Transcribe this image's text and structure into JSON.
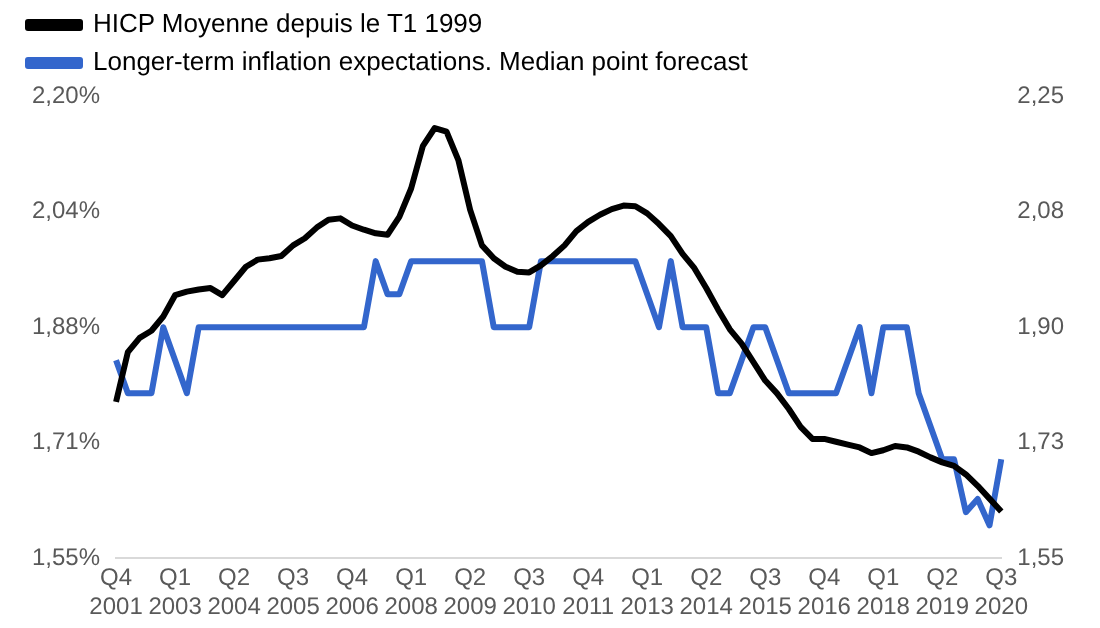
{
  "chart_data": {
    "type": "line",
    "legend": "top",
    "grid": false,
    "marker": "none",
    "line_style": "solid",
    "categories": [
      "Q4 2001",
      null,
      null,
      null,
      null,
      "Q1 2003",
      null,
      null,
      null,
      null,
      "Q2 2004",
      null,
      null,
      null,
      null,
      "Q3 2005",
      null,
      null,
      null,
      null,
      "Q4 2006",
      null,
      null,
      null,
      null,
      "Q1 2008",
      null,
      null,
      null,
      null,
      "Q2 2009",
      null,
      null,
      null,
      null,
      "Q3 2010",
      null,
      null,
      null,
      null,
      "Q4 2011",
      null,
      null,
      null,
      null,
      "Q1 2013",
      null,
      null,
      null,
      null,
      "Q2 2014",
      null,
      null,
      null,
      null,
      "Q3 2015",
      null,
      null,
      null,
      null,
      "Q4 2016",
      null,
      null,
      null,
      null,
      "Q1 2018",
      null,
      null,
      null,
      null,
      "Q2 2019",
      null,
      null,
      null,
      null,
      "Q3 2020"
    ],
    "ylim": [
      1.55,
      2.2
    ],
    "yticks": [
      {
        "value": 1.55,
        "label": "1,55%"
      },
      {
        "value": 1.7125,
        "label": "1,71%"
      },
      {
        "value": 1.875,
        "label": "1,88%"
      },
      {
        "value": 2.0375,
        "label": "2,04%"
      },
      {
        "value": 2.2,
        "label": "2,20%"
      }
    ],
    "y2lim": [
      1.55,
      2.25
    ],
    "y2ticks": [
      {
        "value": 1.55,
        "label": "1,55"
      },
      {
        "value": 1.725,
        "label": "1,73"
      },
      {
        "value": 1.9,
        "label": "1,90"
      },
      {
        "value": 2.075,
        "label": "2,08"
      },
      {
        "value": 2.25,
        "label": "2,25"
      }
    ],
    "series": [
      {
        "name": "HICP Moyenne depuis le T1 1999",
        "color": "#000000",
        "values": [
          1.77,
          1.84,
          1.86,
          1.87,
          1.89,
          1.92,
          1.925,
          1.928,
          1.93,
          1.92,
          1.94,
          1.96,
          1.97,
          1.972,
          1.975,
          1.99,
          2.0,
          2.015,
          2.026,
          2.028,
          2.018,
          2.012,
          2.007,
          2.005,
          2.03,
          2.07,
          2.13,
          2.155,
          2.15,
          2.11,
          2.04,
          1.99,
          1.972,
          1.96,
          1.953,
          1.952,
          1.962,
          1.975,
          1.99,
          2.01,
          2.023,
          2.033,
          2.041,
          2.046,
          2.045,
          2.035,
          2.02,
          2.003,
          1.978,
          1.958,
          1.93,
          1.9,
          1.872,
          1.852,
          1.826,
          1.8,
          1.782,
          1.76,
          1.735,
          1.718,
          1.718,
          1.714,
          1.71,
          1.706,
          1.698,
          1.702,
          1.708,
          1.706,
          1.7,
          1.692,
          1.685,
          1.68,
          1.668,
          1.652,
          1.634,
          1.616
        ]
      },
      {
        "name": "Longer-term inflation expectations. Median point forecast",
        "color": "#3366cc",
        "axis": "y2",
        "values": [
          1.85,
          1.8,
          1.8,
          1.8,
          1.9,
          1.85,
          1.8,
          1.9,
          1.9,
          1.9,
          1.9,
          1.9,
          1.9,
          1.9,
          1.9,
          1.9,
          1.9,
          1.9,
          1.9,
          1.9,
          1.9,
          1.9,
          2.0,
          1.95,
          1.95,
          2.0,
          2.0,
          2.0,
          2.0,
          2.0,
          2.0,
          2.0,
          1.9,
          1.9,
          1.9,
          1.9,
          2.0,
          2.0,
          2.0,
          2.0,
          2.0,
          2.0,
          2.0,
          2.0,
          2.0,
          1.95,
          1.9,
          2.0,
          1.9,
          1.9,
          1.9,
          1.8,
          1.8,
          1.85,
          1.9,
          1.9,
          1.85,
          1.8,
          1.8,
          1.8,
          1.8,
          1.8,
          1.85,
          1.9,
          1.8,
          1.9,
          1.9,
          1.9,
          1.8,
          1.75,
          1.7,
          1.7,
          1.62,
          1.64,
          1.6,
          1.7
        ]
      }
    ]
  }
}
